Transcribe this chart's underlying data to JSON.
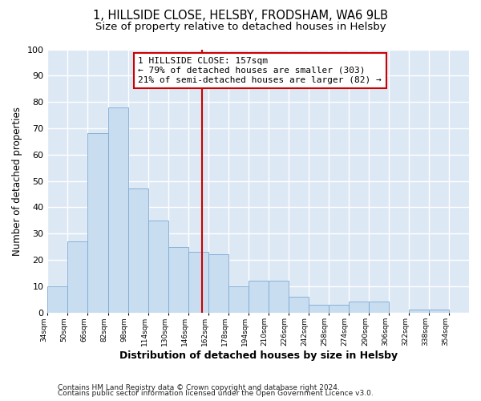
{
  "title1": "1, HILLSIDE CLOSE, HELSBY, FRODSHAM, WA6 9LB",
  "title2": "Size of property relative to detached houses in Helsby",
  "xlabel": "Distribution of detached houses by size in Helsby",
  "ylabel": "Number of detached properties",
  "bar_values": [
    10,
    27,
    68,
    78,
    47,
    35,
    25,
    23,
    22,
    10,
    12,
    12,
    6,
    3,
    3,
    4,
    4,
    0,
    1,
    1,
    0
  ],
  "bin_labels": [
    "34sqm",
    "50sqm",
    "66sqm",
    "82sqm",
    "98sqm",
    "114sqm",
    "130sqm",
    "146sqm",
    "162sqm",
    "178sqm",
    "194sqm",
    "210sqm",
    "226sqm",
    "242sqm",
    "258sqm",
    "274sqm",
    "290sqm",
    "306sqm",
    "322sqm",
    "338sqm",
    "354sqm"
  ],
  "bin_edges": [
    34,
    50,
    66,
    82,
    98,
    114,
    130,
    146,
    162,
    178,
    194,
    210,
    226,
    242,
    258,
    274,
    290,
    306,
    322,
    338,
    354,
    370
  ],
  "bar_color": "#c9ddf0",
  "bar_edge_color": "#7baad4",
  "vline_x": 157,
  "vline_color": "#cc0000",
  "annotation_line1": "1 HILLSIDE CLOSE: 157sqm",
  "annotation_line2": "← 79% of detached houses are smaller (303)",
  "annotation_line3": "21% of semi-detached houses are larger (82) →",
  "annotation_box_color": "#cc0000",
  "annotation_bg": "#ffffff",
  "ylim": [
    0,
    100
  ],
  "yticks": [
    0,
    10,
    20,
    30,
    40,
    50,
    60,
    70,
    80,
    90,
    100
  ],
  "footer1": "Contains HM Land Registry data © Crown copyright and database right 2024.",
  "footer2": "Contains public sector information licensed under the Open Government Licence v3.0.",
  "fig_bg_color": "#ffffff",
  "plot_bg": "#dde8f5",
  "grid_color": "#ffffff",
  "title1_fontsize": 10.5,
  "title2_fontsize": 9.5,
  "xlabel_fontsize": 9,
  "ylabel_fontsize": 8.5
}
